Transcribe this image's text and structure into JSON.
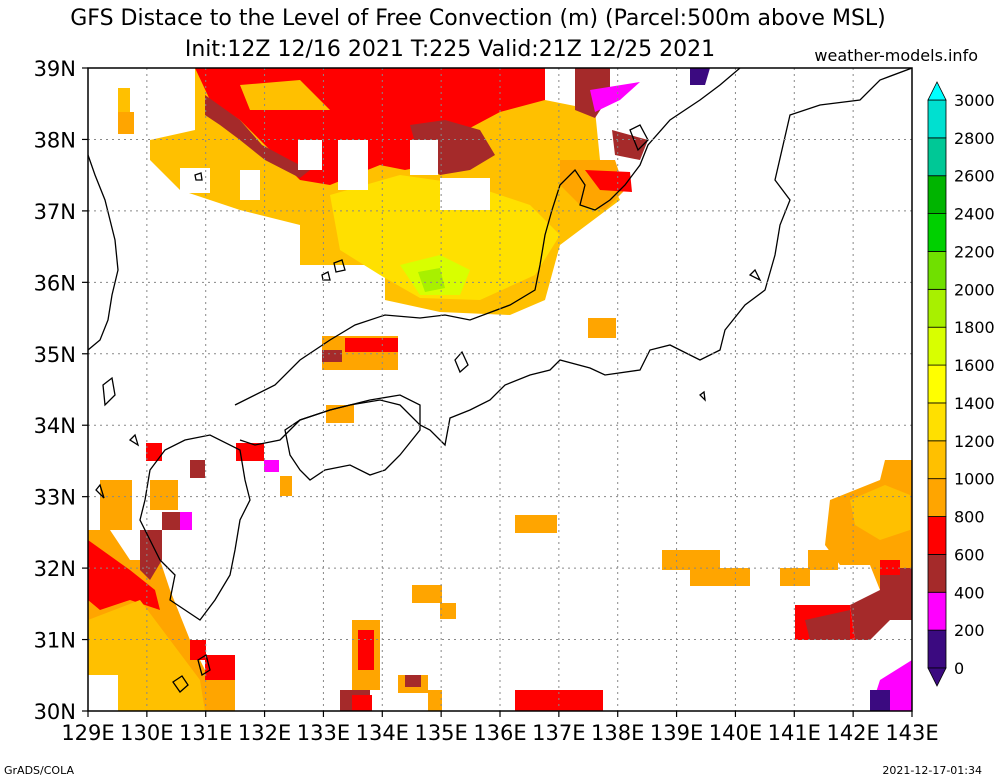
{
  "title_line1": "GFS Distace to the Level of Free Convection (m) (Parcel:500m above MSL)",
  "title_line2": "Init:12Z 12/16 2021 T:225 Valid:21Z 12/25 2021",
  "site": "weather-models.info",
  "credit_left": "GrADS/COLA",
  "credit_right": "2021-12-17-01:34",
  "map": {
    "lon_range": [
      129,
      143
    ],
    "lat_range": [
      30,
      39
    ],
    "lon_labels": [
      "129E",
      "130E",
      "131E",
      "132E",
      "133E",
      "134E",
      "135E",
      "136E",
      "137E",
      "138E",
      "139E",
      "140E",
      "141E",
      "142E",
      "143E"
    ],
    "lat_labels": [
      "30N",
      "31N",
      "32N",
      "33N",
      "34N",
      "35N",
      "36N",
      "37N",
      "38N",
      "39N"
    ],
    "grid": "dotted",
    "colorbar": {
      "labels": [
        "0",
        "200",
        "400",
        "600",
        "800",
        "1000",
        "1200",
        "1400",
        "1600",
        "1800",
        "2000",
        "2200",
        "2400",
        "2600",
        "2800",
        "3000"
      ],
      "colors": [
        "#3b0a80",
        "#ff00ff",
        "#a52a2a",
        "#ff0000",
        "#ffa500",
        "#ffc000",
        "#ffe000",
        "#ffff00",
        "#d8ff00",
        "#a8f000",
        "#70e000",
        "#00d000",
        "#00b400",
        "#00c896",
        "#00e0d0",
        "#00ffff"
      ]
    }
  }
}
